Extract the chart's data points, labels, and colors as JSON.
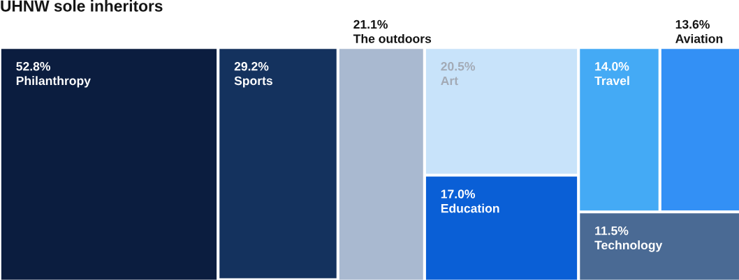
{
  "chart_data": {
    "type": "other",
    "title": "UHNW sole inheritors",
    "categories": [
      "Philanthropy",
      "Sports",
      "The outdoors",
      "Art",
      "Education",
      "Travel",
      "Aviation",
      "Technology"
    ],
    "values": [
      52.8,
      29.2,
      21.1,
      20.5,
      17.0,
      14.0,
      13.6,
      11.5
    ],
    "value_labels": [
      "52.8%",
      "29.2%",
      "21.1%",
      "20.5%",
      "17.0%",
      "14.0%",
      "13.6%",
      "11.5%"
    ],
    "colors": [
      "#0b1d3f",
      "#14325e",
      "#a9b9d0",
      "#c8e3fa",
      "#0a5fd6",
      "#44aaf5",
      "#3390f5",
      "#4a6a94"
    ]
  }
}
